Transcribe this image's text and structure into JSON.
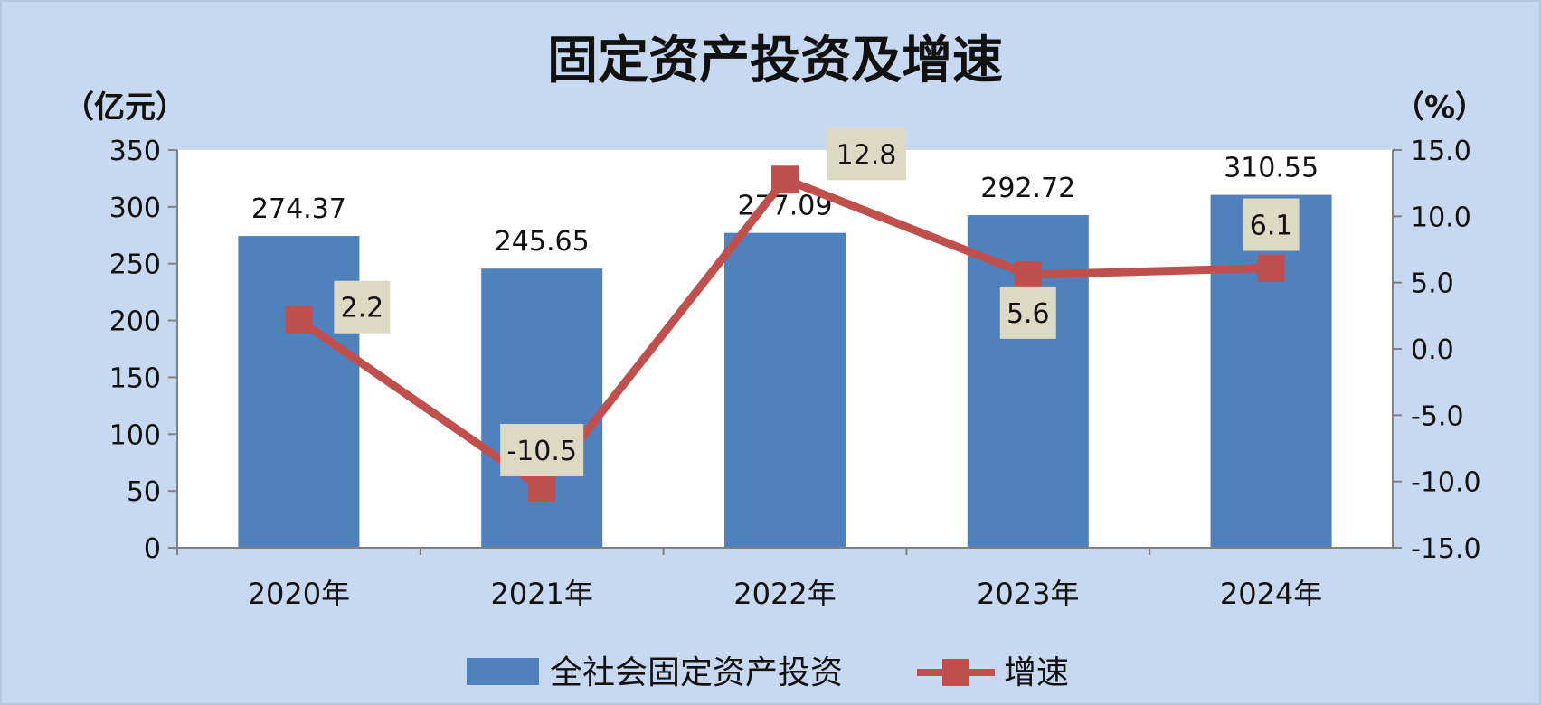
{
  "chart_data": {
    "type": "bar",
    "title": "固定资产投资及增速",
    "left_axis_unit": "（亿元）",
    "right_axis_unit": "（%）",
    "categories": [
      "2020年",
      "2021年",
      "2022年",
      "2023年",
      "2024年"
    ],
    "series": [
      {
        "name": "全社会固定资产投资",
        "type": "bar",
        "axis": "left",
        "color": "#4f81bd",
        "values": [
          274.37,
          245.65,
          277.09,
          292.72,
          310.55
        ],
        "labels": [
          "274.37",
          "245.65",
          "277.09",
          "292.72",
          "310.55"
        ]
      },
      {
        "name": "增速",
        "type": "line",
        "axis": "right",
        "color": "#c0504d",
        "values": [
          2.2,
          -10.5,
          12.8,
          5.6,
          6.1
        ],
        "labels": [
          "2.2",
          "-10.5",
          "12.8",
          "5.6",
          "6.1"
        ]
      }
    ],
    "left_axis": {
      "ylim": [
        0,
        350
      ],
      "ticks": [
        0,
        50,
        100,
        150,
        200,
        250,
        300,
        350
      ],
      "tick_labels": [
        "0",
        "50",
        "100",
        "150",
        "200",
        "250",
        "300",
        "350"
      ]
    },
    "right_axis": {
      "ylim": [
        -15,
        15
      ],
      "ticks": [
        -15,
        -10,
        -5,
        0,
        5,
        10,
        15
      ],
      "tick_labels": [
        "-15.0",
        "-10.0",
        "-5.0",
        "0.0",
        "5.0",
        "10.0",
        "15.0"
      ]
    },
    "grid": false,
    "legend_position": "bottom",
    "label_box_color": "#ddd9c3",
    "background_color": "#c6d9f0",
    "plot_background_color": "#ffffff"
  }
}
